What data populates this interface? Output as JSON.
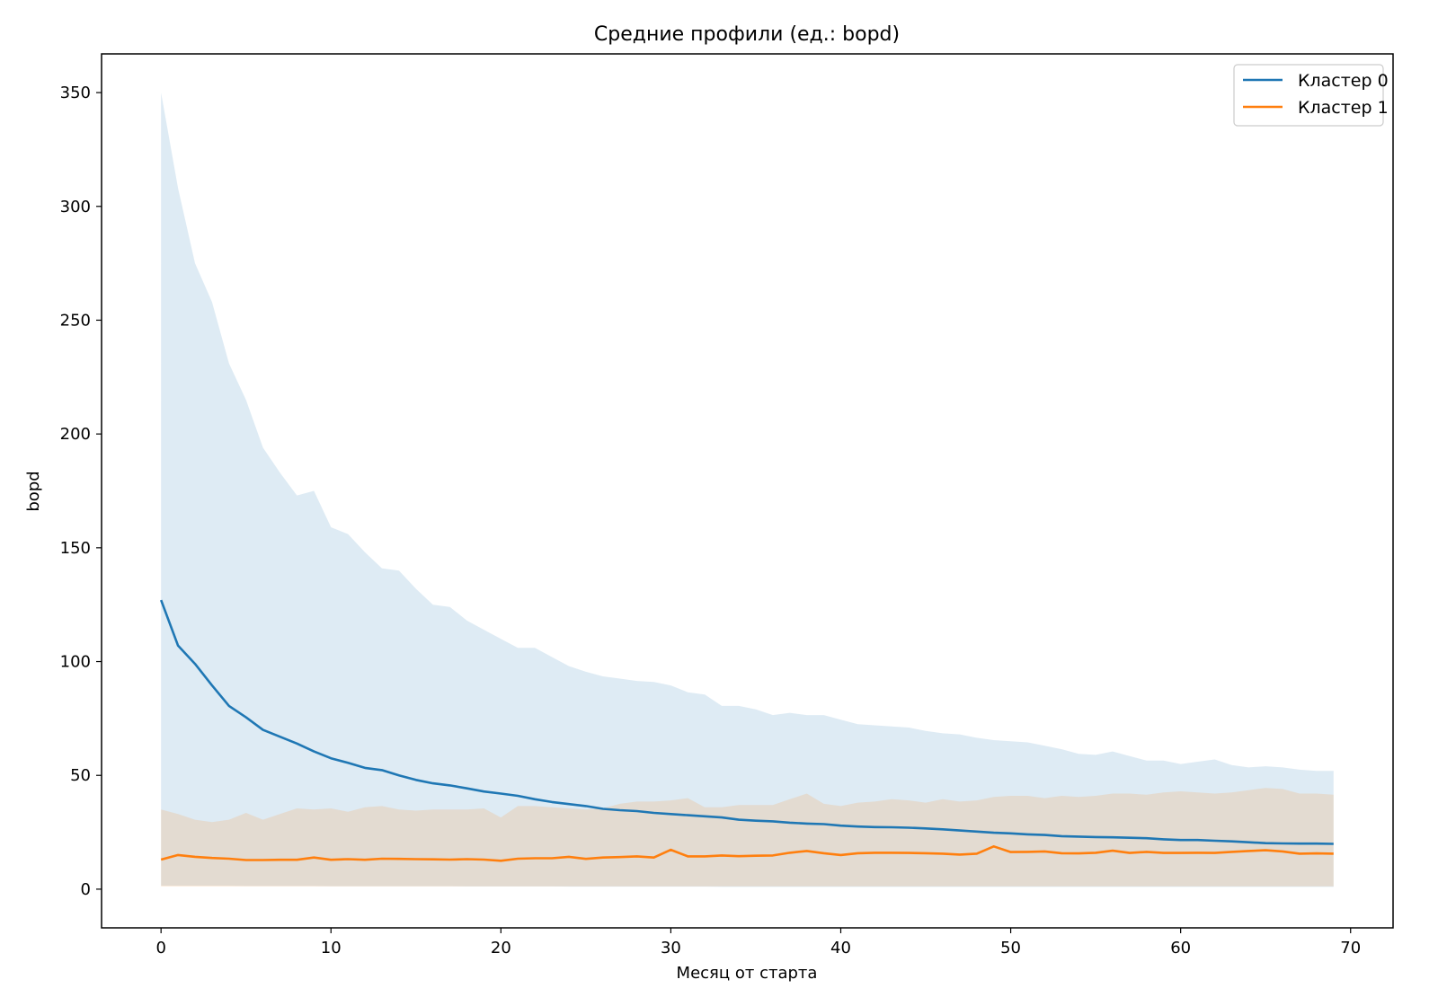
{
  "chart_data": {
    "type": "line",
    "title": "Средние профили (ед.: bopd)",
    "xlabel": "Месяц от старта",
    "ylabel": "bopd",
    "xlim": [
      -3.5,
      72.5
    ],
    "ylim": [
      -17,
      367
    ],
    "xticks": [
      0,
      10,
      20,
      30,
      40,
      50,
      60,
      70
    ],
    "yticks": [
      0,
      50,
      100,
      150,
      200,
      250,
      300,
      350
    ],
    "grid": false,
    "legend_position": "top-right",
    "x": [
      0,
      1,
      2,
      3,
      4,
      5,
      6,
      7,
      8,
      9,
      10,
      11,
      12,
      13,
      14,
      15,
      16,
      17,
      18,
      19,
      20,
      21,
      22,
      23,
      24,
      25,
      26,
      27,
      28,
      29,
      30,
      31,
      32,
      33,
      34,
      35,
      36,
      37,
      38,
      39,
      40,
      41,
      42,
      43,
      44,
      45,
      46,
      47,
      48,
      49,
      50,
      51,
      52,
      53,
      54,
      55,
      56,
      57,
      58,
      59,
      60,
      61,
      62,
      63,
      64,
      65,
      66,
      67,
      68,
      69
    ],
    "series": [
      {
        "name": "Кластер 0",
        "color": "#1f77b4",
        "band_color": "#1f77b4",
        "values": [
          127,
          107,
          99,
          89.5,
          80.5,
          75.5,
          70,
          67,
          64,
          60.5,
          57.5,
          55.5,
          53.3,
          52.3,
          50,
          48,
          46.5,
          45.6,
          44.3,
          42.9,
          42,
          41,
          39.5,
          38.3,
          37.4,
          36.5,
          35.3,
          34.7,
          34.3,
          33.5,
          33,
          32.5,
          32,
          31.5,
          30.5,
          30.1,
          29.8,
          29.2,
          28.8,
          28.6,
          27.9,
          27.5,
          27.3,
          27.2,
          27,
          26.7,
          26.3,
          25.8,
          25.3,
          24.8,
          24.5,
          24.1,
          23.8,
          23.3,
          23.1,
          22.9,
          22.8,
          22.6,
          22.4,
          21.9,
          21.6,
          21.6,
          21.3,
          21,
          20.6,
          20.2,
          20.1,
          20,
          20,
          19.9
        ],
        "upper": [
          350,
          308,
          275,
          258,
          231,
          215,
          194,
          183,
          173,
          175,
          159,
          156,
          148,
          141,
          140,
          132,
          125,
          124,
          118,
          114,
          110,
          106,
          106,
          102,
          98,
          95.5,
          93.5,
          92.5,
          91.5,
          91,
          89.5,
          86.5,
          85.5,
          80.5,
          80.5,
          79,
          76.5,
          77.5,
          76.5,
          76.5,
          74.5,
          72.5,
          72,
          71.5,
          71,
          69.5,
          68.5,
          68,
          66.5,
          65.5,
          65,
          64.5,
          63,
          61.5,
          59.5,
          59,
          60.5,
          58.5,
          56.5,
          56.5,
          55,
          56,
          57,
          54.5,
          53.5,
          54,
          53.5,
          52.5,
          52,
          52
        ],
        "lower": [
          1.5,
          1.5,
          1.5,
          1.5,
          1.5,
          1.4,
          1.4,
          1.4,
          1.4,
          1.4,
          1.3,
          1.3,
          1.3,
          1.3,
          1.3,
          1.3,
          1.3,
          1.3,
          1.2,
          1.2,
          1.2,
          1.2,
          1.2,
          1.2,
          1.1,
          1.1,
          1.1,
          1.1,
          1.1,
          1.1,
          1.1,
          1.1,
          1.1,
          1.0,
          1.0,
          1.0,
          1.0,
          1.0,
          1.0,
          1.0,
          1.0,
          1.0,
          1.0,
          1.0,
          1.0,
          1.0,
          1.0,
          1.0,
          1.0,
          1.0,
          1.0,
          1.0,
          1.0,
          1.0,
          1.0,
          1.0,
          1.0,
          1.0,
          1.0,
          1.0,
          1.0,
          1.0,
          1.0,
          1.0,
          1.0,
          1.0,
          1.0,
          1.0,
          1.0,
          1.0
        ]
      },
      {
        "name": "Кластер 1",
        "color": "#ff7f0e",
        "band_color": "#ff7f0e",
        "values": [
          13,
          15,
          14.2,
          13.7,
          13.4,
          12.8,
          12.8,
          12.9,
          12.9,
          13.9,
          12.9,
          13.2,
          12.9,
          13.4,
          13.3,
          13.2,
          13.1,
          13,
          13.2,
          13,
          12.5,
          13.4,
          13.6,
          13.6,
          14.2,
          13.3,
          13.9,
          14.1,
          14.4,
          13.9,
          17.3,
          14.4,
          14.4,
          14.8,
          14.5,
          14.7,
          14.8,
          16,
          16.8,
          15.8,
          15,
          15.8,
          16,
          16,
          15.9,
          15.8,
          15.6,
          15.2,
          15.6,
          18.8,
          16.3,
          16.4,
          16.6,
          15.8,
          15.7,
          16,
          16.9,
          15.9,
          16.4,
          15.9,
          15.9,
          16,
          15.9,
          16.4,
          16.8,
          17.1,
          16.6,
          15.6,
          15.7,
          15.6
        ],
        "upper": [
          35,
          33,
          30.5,
          29.5,
          30.5,
          33.5,
          30.5,
          33,
          35.5,
          35,
          35.5,
          34,
          36,
          36.5,
          35,
          34.5,
          35,
          35,
          35,
          35.5,
          31.5,
          36.5,
          36.5,
          36,
          35.5,
          35,
          35.5,
          37.5,
          38.5,
          38.5,
          39,
          40,
          36,
          36,
          37,
          37,
          37,
          39.5,
          42,
          37.5,
          36.5,
          38,
          38.5,
          39.5,
          39,
          38,
          39.5,
          38.5,
          39,
          40.5,
          41,
          41,
          40,
          41,
          40.5,
          41,
          42,
          42,
          41.5,
          42.5,
          43,
          42.5,
          42,
          42.5,
          43.5,
          44.5,
          44,
          42,
          42,
          41.5
        ],
        "lower": [
          1.2,
          1.2,
          1.2,
          1.2,
          1.2,
          1.2,
          1.2,
          1.2,
          1.2,
          1.2,
          1.2,
          1.2,
          1.2,
          1.2,
          1.2,
          1.2,
          1.2,
          1.2,
          1.2,
          1.2,
          1.2,
          1.2,
          1.2,
          1.2,
          1.2,
          1.2,
          1.2,
          1.2,
          1.2,
          1.2,
          1.2,
          1.2,
          1.2,
          1.2,
          1.2,
          1.2,
          1.2,
          1.2,
          1.2,
          1.2,
          1.2,
          1.2,
          1.2,
          1.2,
          1.2,
          1.2,
          1.2,
          1.2,
          1.2,
          1.2,
          1.2,
          1.2,
          1.2,
          1.2,
          1.2,
          1.2,
          1.2,
          1.2,
          1.2,
          1.2,
          1.2,
          1.2,
          1.2,
          1.2,
          1.2,
          1.2,
          1.2,
          1.2,
          1.2,
          1.2
        ]
      }
    ]
  }
}
